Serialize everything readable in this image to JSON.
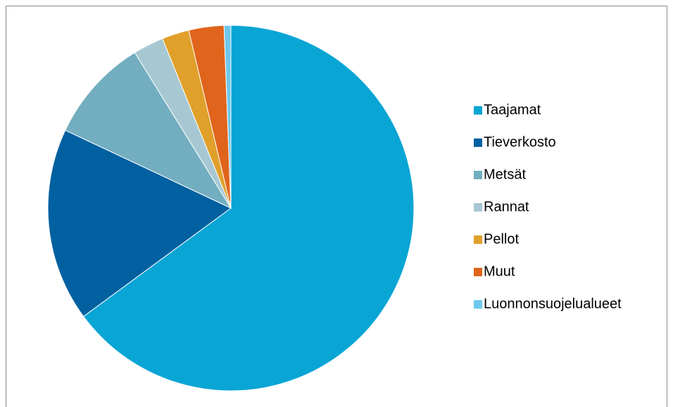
{
  "chart_data": {
    "type": "pie",
    "categories": [
      "Taajamat",
      "Tieverkosto",
      "Metsät",
      "Rannat",
      "Pellot",
      "Muut",
      "Luonnonsuojelualueet"
    ],
    "values": [
      64.9,
      17.1,
      9.2,
      2.7,
      2.4,
      3.1,
      0.6
    ],
    "colors": [
      "#09a5d5",
      "#0060a0",
      "#72aec0",
      "#a7c8d2",
      "#e0a02a",
      "#e0641c",
      "#6fc8ec"
    ],
    "legend": "right"
  }
}
